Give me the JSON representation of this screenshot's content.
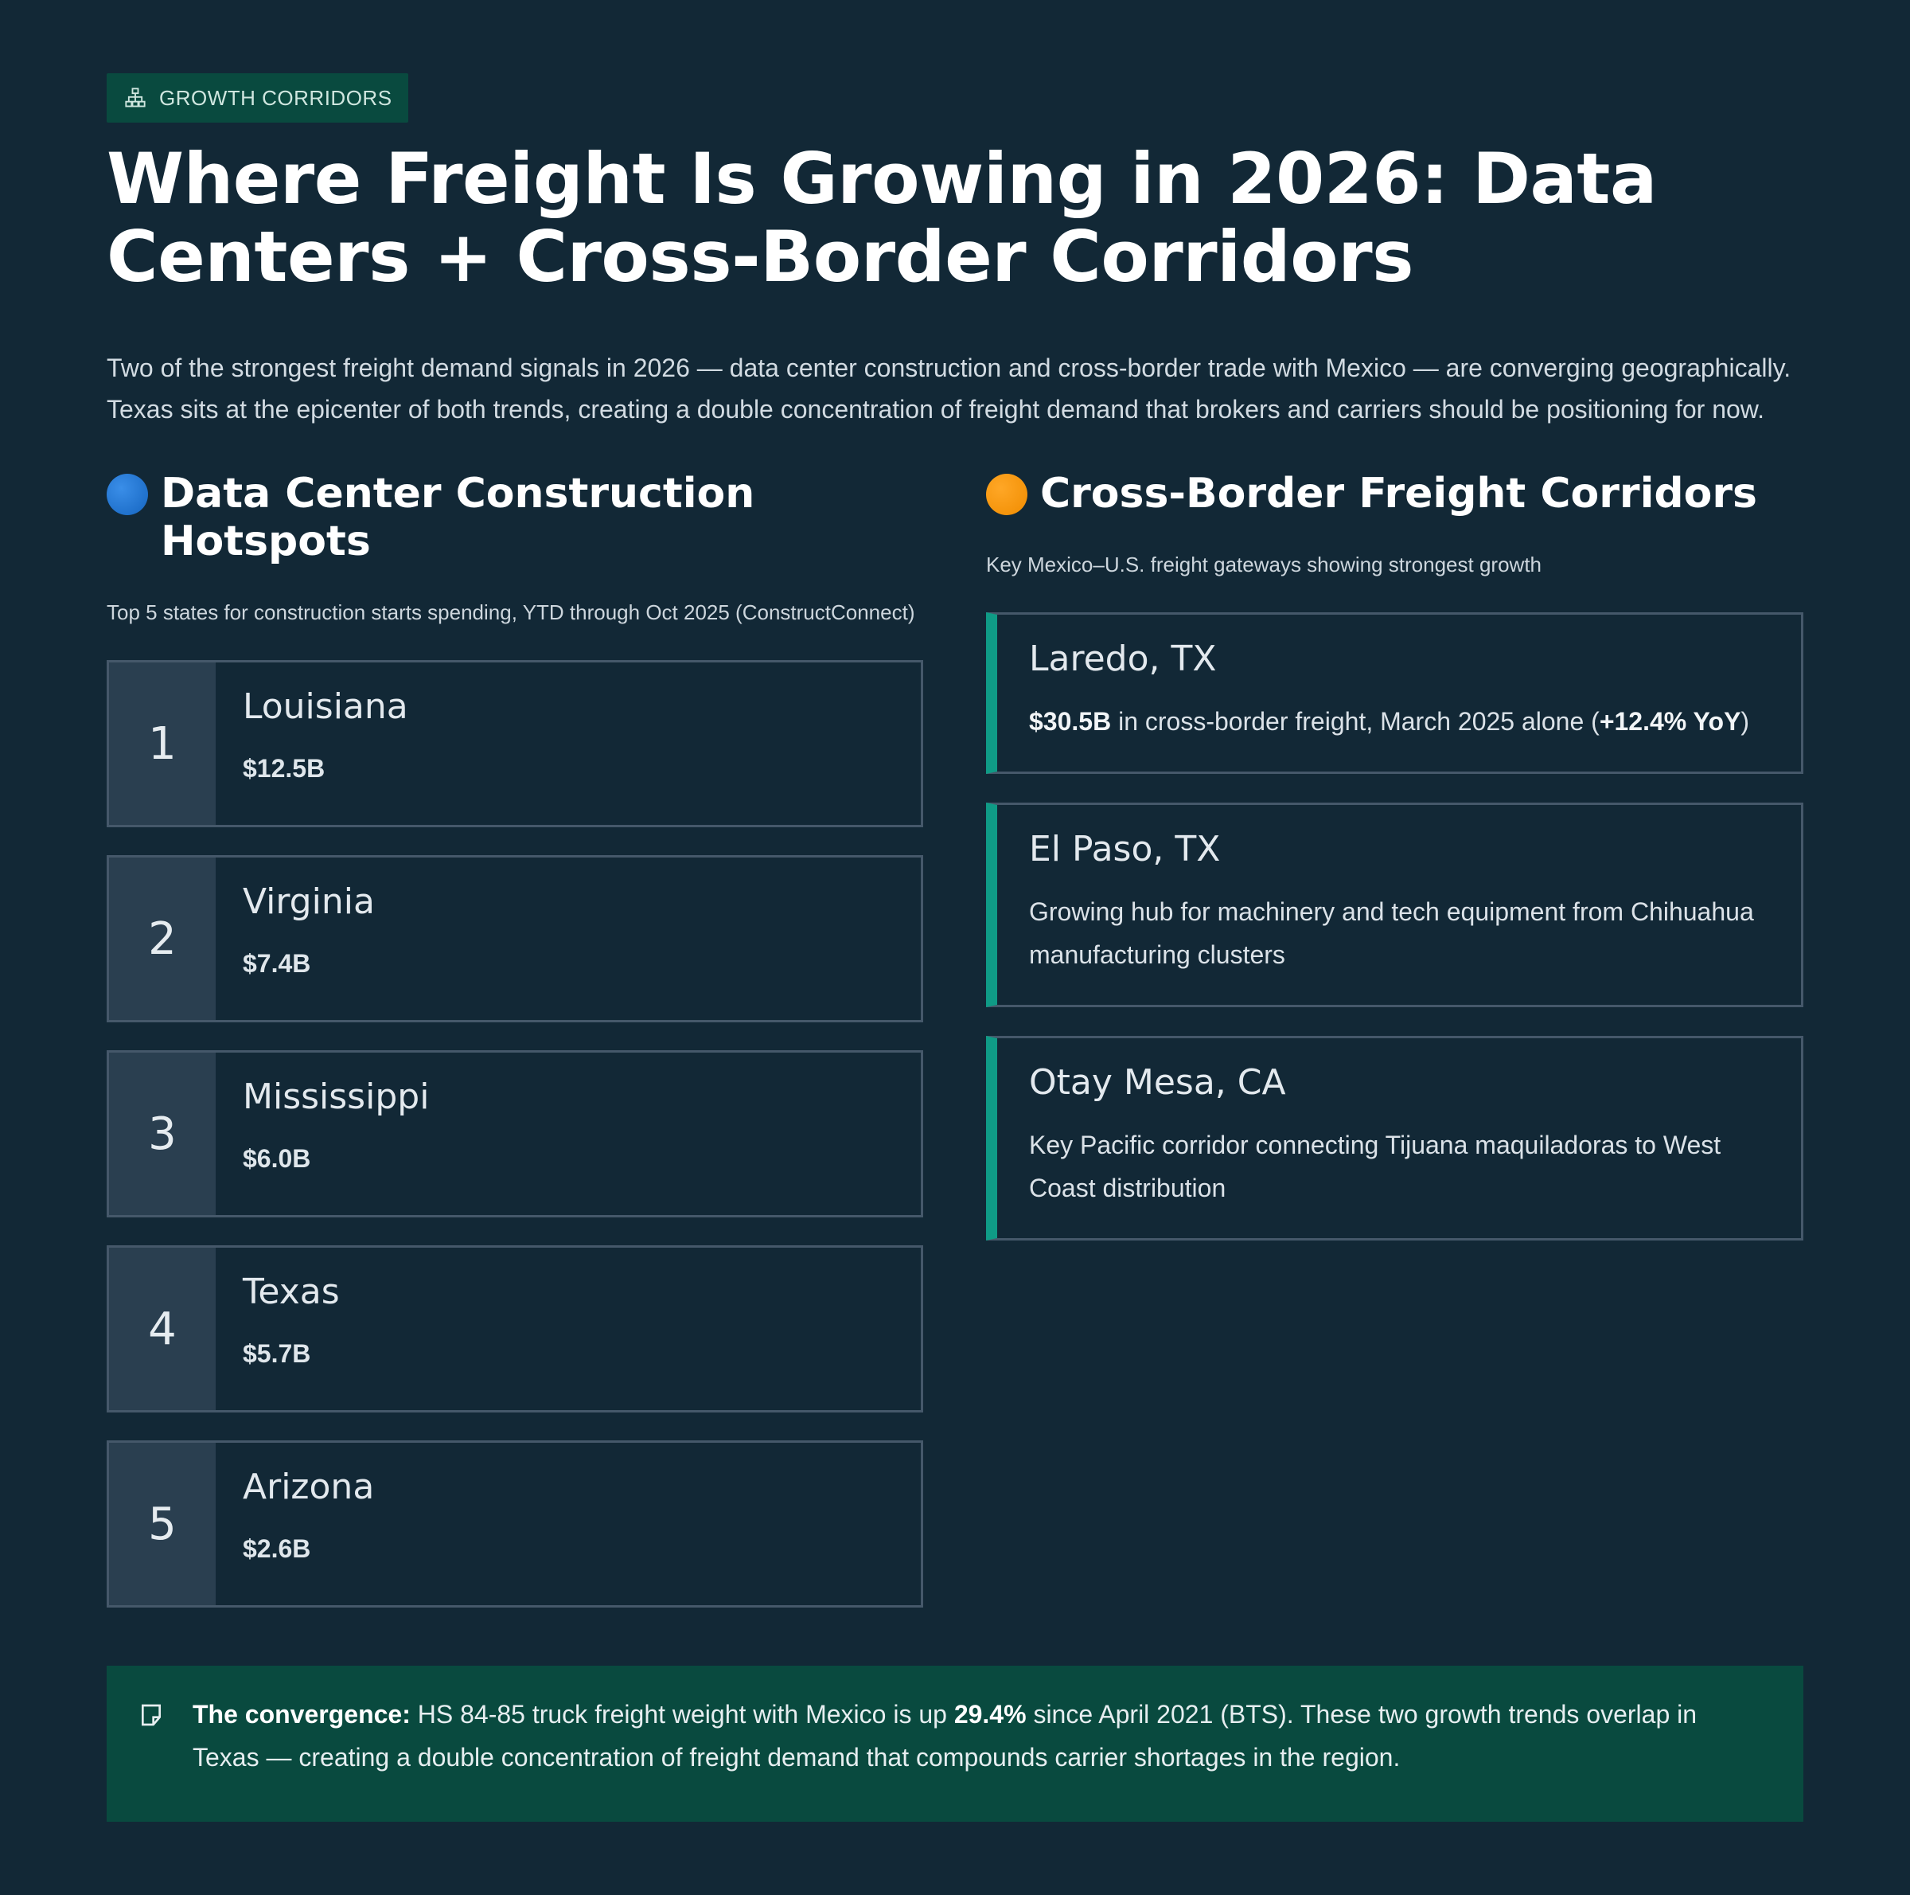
{
  "tag": {
    "label": "GROWTH CORRIDORS",
    "icon": "hierarchy-icon"
  },
  "title": "Where Freight Is Growing in 2026: Data Centers + Cross-Border Corridors",
  "intro": "Two of the strongest freight demand signals in 2026 — data center construction and cross-border trade with Mexico — are converging geographically. Texas sits at the epicenter of both trends, creating a double concentration of freight demand that brokers and carriers should be positioning for now.",
  "data_centers": {
    "title": "Data Center Construction Hotspots",
    "dot_color": "#1e6fd0",
    "subtitle": "Top 5 states for construction starts spending, YTD through Oct 2025 (ConstructConnect)",
    "items": [
      {
        "rank": "1",
        "state": "Louisiana",
        "value": "$12.5B"
      },
      {
        "rank": "2",
        "state": "Virginia",
        "value": "$7.4B"
      },
      {
        "rank": "3",
        "state": "Mississippi",
        "value": "$6.0B"
      },
      {
        "rank": "4",
        "state": "Texas",
        "value": "$5.7B"
      },
      {
        "rank": "5",
        "state": "Arizona",
        "value": "$2.6B"
      }
    ]
  },
  "corridors": {
    "title": "Cross-Border Freight Corridors",
    "dot_color": "#f59300",
    "subtitle": "Key Mexico–U.S. freight gateways showing strongest growth",
    "items": [
      {
        "name": "Laredo, TX",
        "desc_bold1": "$30.5B",
        "desc_mid": " in cross-border freight, March 2025 alone (",
        "desc_bold2": "+12.4% YoY",
        "desc_end": ")"
      },
      {
        "name": "El Paso, TX",
        "desc": "Growing hub for machinery and tech equipment from Chihuahua manufacturing clusters"
      },
      {
        "name": "Otay Mesa, CA",
        "desc": "Key Pacific corridor connecting Tijuana maquiladoras to West Coast distribution"
      }
    ]
  },
  "callout": {
    "icon": "note-icon",
    "lead": "The convergence:",
    "text1": " HS 84-85 truck freight weight with Mexico is up ",
    "highlight": "29.4%",
    "text2": " since April 2021 (BTS). These two growth trends overlap in Texas — creating a double concentration of freight demand that compounds carrier shortages in the region."
  },
  "colors": {
    "background": "#122836",
    "accent_green": "#094a3f",
    "accent_teal": "#0f9b86",
    "card_border": "#45586a"
  }
}
